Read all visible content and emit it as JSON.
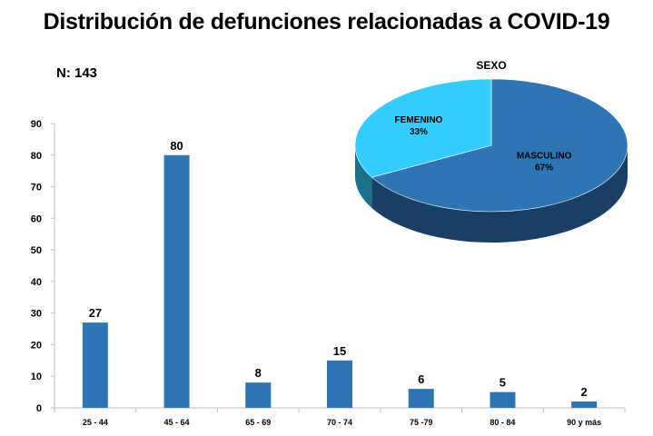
{
  "title": "Distribución de defunciones relacionadas a COVID-19",
  "n_label": "N: 143",
  "chart_data": [
    {
      "type": "bar",
      "categories": [
        "25 - 44",
        "45 - 64",
        "65 - 69",
        "70 - 74",
        "75 -79",
        "80 - 84",
        "90 y más"
      ],
      "values": [
        27,
        80,
        8,
        15,
        6,
        5,
        2
      ],
      "ylim": [
        0,
        90
      ],
      "yticks": [
        0,
        10,
        20,
        30,
        40,
        50,
        60,
        70,
        80,
        90
      ],
      "bar_color": "#2E75B6",
      "grid": false
    },
    {
      "type": "pie",
      "title": "SEXO",
      "style": "3d",
      "slices": [
        {
          "label": "MASCULINO",
          "value": 67,
          "display": "67%",
          "color": "#2E75B6"
        },
        {
          "label": "FEMENINO",
          "value": 33,
          "display": "33%",
          "color": "#33CCFF"
        }
      ]
    }
  ]
}
